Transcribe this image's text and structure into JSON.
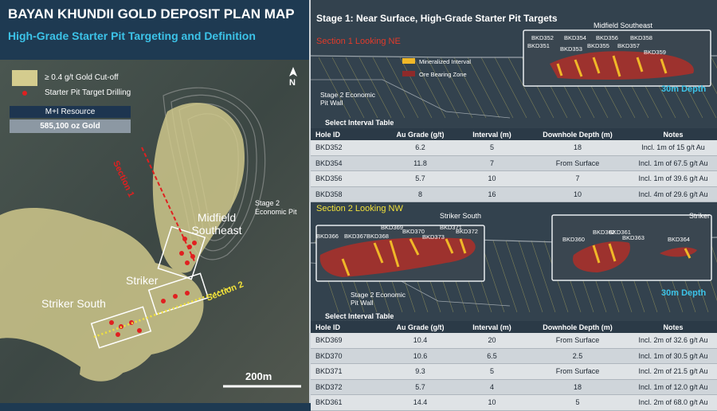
{
  "map": {
    "title": "BAYAN KHUNDII GOLD DEPOSIT PLAN MAP",
    "subtitle": "High-Grade Starter Pit Targeting and Definition",
    "legend": [
      "≥ 0.4 g/t Gold Cut-off",
      "Starter Pit Target Drilling"
    ],
    "north": "N",
    "resource": {
      "label": "M+I Resource",
      "value": "585,100 oz Gold"
    },
    "labels": {
      "section1": "Section 1",
      "section2": "Section 2",
      "midfield": "Midfield Southeast",
      "striker": "Striker",
      "striker_south": "Striker South",
      "pit": "Stage 2 Economic Pit"
    },
    "scale": "200m"
  },
  "sections": {
    "title": "Stage 1: Near Surface, High-Grade Starter Pit Targets",
    "section1": {
      "title": "Section 1 Looking NE",
      "legend": [
        "Mineralized Interval",
        "Ore Bearing Zone"
      ],
      "area": "Midfield Southeast",
      "holes": [
        "BKD352",
        "BKD354",
        "BKD356",
        "BKD358",
        "BKD351",
        "BKD353",
        "BKD355",
        "BKD357",
        "BKD359"
      ],
      "pit_wall": "Stage 2 Economic Pit Wall",
      "depth": "30m Depth",
      "table": {
        "title": "Select Interval Table",
        "headers": [
          "Hole ID",
          "Au Grade (g/t)",
          "Interval (m)",
          "Downhole Depth (m)",
          "Notes"
        ],
        "rows": [
          [
            "BKD352",
            "6.2",
            "5",
            "18",
            "Incl. 1m of 15 g/t Au"
          ],
          [
            "BKD354",
            "11.8",
            "7",
            "From Surface",
            "Incl. 1m of 67.5 g/t Au"
          ],
          [
            "BKD356",
            "5.7",
            "10",
            "7",
            "Incl. 1m of 39.6 g/t Au"
          ],
          [
            "BKD358",
            "8",
            "16",
            "10",
            "Incl. 4m of 29.6 g/t Au"
          ]
        ]
      }
    },
    "section2": {
      "title": "Section 2 Looking NW",
      "areas": [
        "Striker South",
        "Striker"
      ],
      "holes": [
        "BKD366",
        "BKD367",
        "BKD368",
        "BKD369",
        "BKD370",
        "BKD371",
        "BKD373",
        "BKD372",
        "BKD362",
        "BKD361",
        "BKD360",
        "BKD363",
        "BKD364"
      ],
      "pit_wall": "Stage 2 Economic Pit Wall",
      "depth": "30m Depth",
      "table": {
        "title": "Select Interval Table",
        "headers": [
          "Hole ID",
          "Au Grade (g/t)",
          "Interval (m)",
          "Downhole Depth (m)",
          "Notes"
        ],
        "rows": [
          [
            "BKD369",
            "10.4",
            "20",
            "From Surface",
            "Incl. 2m of 32.6 g/t Au"
          ],
          [
            "BKD370",
            "10.6",
            "6.5",
            "2.5",
            "Incl. 1m of 30.5 g/t Au"
          ],
          [
            "BKD371",
            "9.3",
            "5",
            "From Surface",
            "Incl. 2m of 21.5 g/t Au"
          ],
          [
            "BKD372",
            "5.7",
            "4",
            "18",
            "Incl. 1m of 12.0 g/t Au"
          ],
          [
            "BKD361",
            "14.4",
            "10",
            "5",
            "Incl. 2m of 68.0 g/t Au"
          ]
        ]
      }
    }
  }
}
